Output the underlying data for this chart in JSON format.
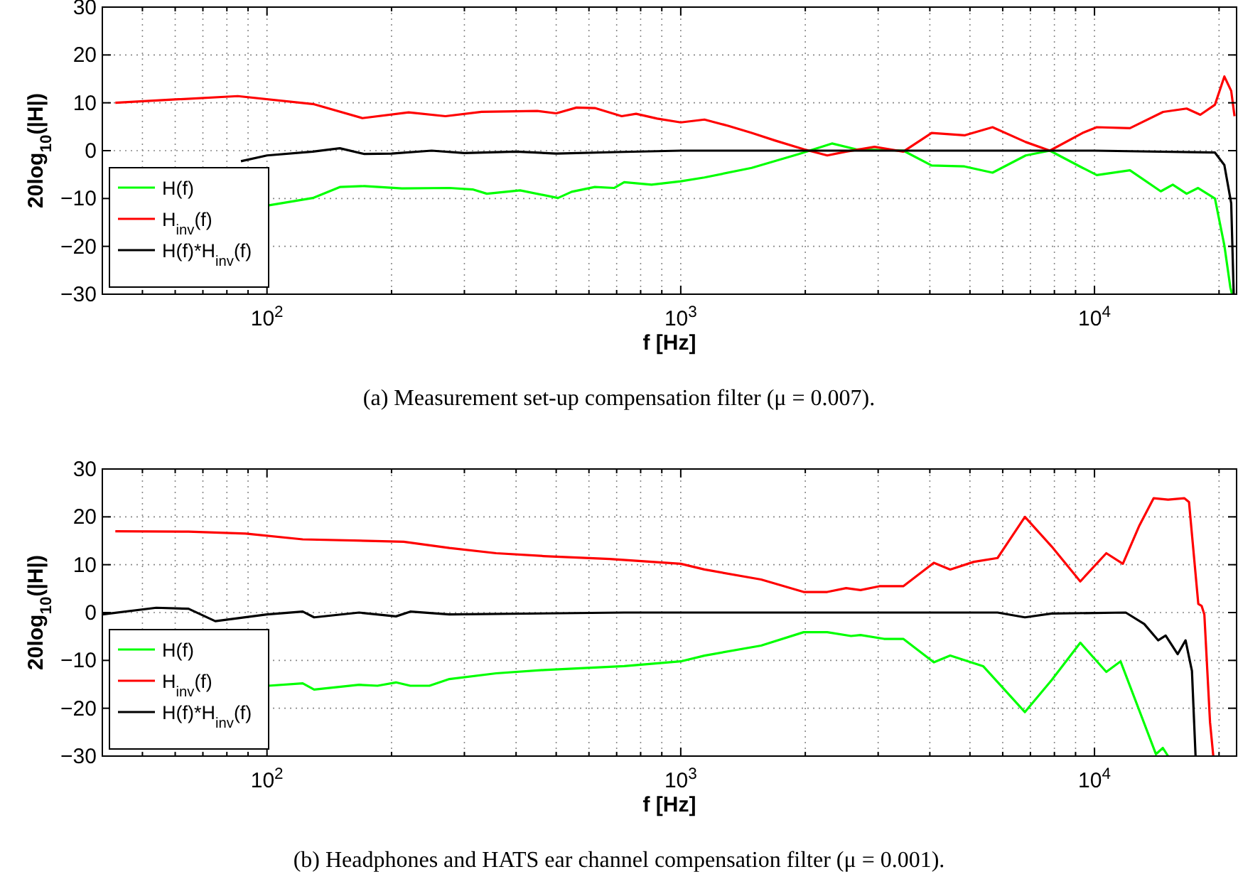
{
  "chart_data": [
    {
      "type": "line",
      "xlabel": "f [Hz]",
      "ylabel": "20log$_{10}$(|H|)",
      "log": "x",
      "grid": true,
      "legend": "bottom left",
      "xlim": [
        40,
        22050
      ],
      "ylim": [
        -30,
        30
      ],
      "yticks": [
        -30,
        -20,
        -10,
        0,
        10,
        20,
        30
      ],
      "xticks": [
        {
          "value": 40,
          "label": null
        },
        {
          "value": 50,
          "label": null
        },
        {
          "value": 60,
          "label": null
        },
        {
          "value": 70,
          "label": null
        },
        {
          "value": 80,
          "label": null
        },
        {
          "value": 90,
          "label": null
        },
        {
          "value": 100,
          "label": "10$^{2}$"
        },
        {
          "value": 200,
          "label": null
        },
        {
          "value": 300,
          "label": null
        },
        {
          "value": 400,
          "label": null
        },
        {
          "value": 500,
          "label": null
        },
        {
          "value": 600,
          "label": null
        },
        {
          "value": 700,
          "label": null
        },
        {
          "value": 800,
          "label": null
        },
        {
          "value": 900,
          "label": null
        },
        {
          "value": 1000,
          "label": "10$^{3}$"
        },
        {
          "value": 2000,
          "label": null
        },
        {
          "value": 3000,
          "label": null
        },
        {
          "value": 4000,
          "label": null
        },
        {
          "value": 5000,
          "label": null
        },
        {
          "value": 6000,
          "label": null
        },
        {
          "value": 7000,
          "label": null
        },
        {
          "value": 8000,
          "label": null
        },
        {
          "value": 9000,
          "label": null
        },
        {
          "value": 10000,
          "label": "10$^{4}$"
        },
        {
          "value": 20000,
          "label": null
        }
      ],
      "annotations": [
        "(a)  Measurement set-up compensation filter (μ = 0.007)."
      ],
      "series": [
        {
          "name": "H(f)",
          "color": "#00ff00",
          "x": [
            100,
            129,
            150,
            172,
            212,
            276,
            314,
            340,
            409,
            505,
            545,
            620,
            690,
            730,
            850,
            1000,
            1141,
            1484,
            1930,
            2320,
            2650,
            3450,
            4040,
            4850,
            5670,
            6820,
            7800,
            9360,
            10130,
            12180,
            14460,
            15460,
            16700,
            17800,
            19550,
            20600,
            21300,
            21500
          ],
          "values": [
            -11.5,
            -9.9,
            -7.6,
            -7.4,
            -7.9,
            -7.8,
            -8.1,
            -9,
            -8.3,
            -9.9,
            -8.6,
            -7.6,
            -7.8,
            -6.6,
            -7.1,
            -6.4,
            -5.6,
            -3.6,
            -0.7,
            1.5,
            0.3,
            0,
            -3.1,
            -3.3,
            -4.6,
            -1,
            0,
            -3.6,
            -5.1,
            -4.1,
            -8.5,
            -7.1,
            -9,
            -7.8,
            -10,
            -19.8,
            -28.6,
            -30
          ]
        },
        {
          "name": "H$_{inv}$(f)",
          "color": "#ff0000",
          "x": [
            43,
            60,
            85,
            130,
            170,
            220,
            270,
            330,
            450,
            500,
            560,
            620,
            720,
            780,
            877,
            1000,
            1141,
            1301,
            1484,
            1693,
            1982,
            2260,
            2510,
            2940,
            3450,
            4040,
            4850,
            5670,
            6820,
            7800,
            9360,
            10130,
            12180,
            14650,
            16700,
            18020,
            19550,
            20600,
            21400,
            21800
          ],
          "values": [
            10,
            10.7,
            11.4,
            9.7,
            6.8,
            8,
            7.2,
            8.1,
            8.3,
            7.8,
            9,
            8.9,
            7.2,
            7.7,
            6.7,
            5.9,
            6.5,
            5.2,
            3.7,
            2.1,
            0.3,
            -1,
            -0.2,
            0.8,
            -0.2,
            3.7,
            3.2,
            4.9,
            1.8,
            0,
            3.7,
            4.9,
            4.7,
            8.1,
            8.8,
            7.5,
            9.6,
            15.5,
            12.5,
            7.2
          ]
        },
        {
          "name": "H(f)*H$_{inv}$(f)",
          "color": "#000000",
          "x": [
            86.5,
            100,
            129,
            150,
            172,
            200,
            250,
            300,
            400,
            500,
            700,
            1000,
            2000,
            5000,
            10000,
            19550,
            20600,
            21400,
            21700
          ],
          "values": [
            -2.2,
            -1,
            -0.2,
            0.5,
            -0.7,
            -0.6,
            0,
            -0.5,
            -0.2,
            -0.6,
            -0.3,
            0,
            0,
            0,
            0,
            -0.4,
            -3,
            -11,
            -30
          ]
        }
      ]
    },
    {
      "type": "line",
      "xlabel": "f [Hz]",
      "ylabel": "20log$_{10}$(|H|)",
      "log": "x",
      "grid": true,
      "legend": "bottom left",
      "xlim": [
        40,
        22050
      ],
      "ylim": [
        -30,
        30
      ],
      "yticks": [
        -30,
        -20,
        -10,
        0,
        10,
        20,
        30
      ],
      "xticks": [
        {
          "value": 40,
          "label": null
        },
        {
          "value": 50,
          "label": null
        },
        {
          "value": 60,
          "label": null
        },
        {
          "value": 70,
          "label": null
        },
        {
          "value": 80,
          "label": null
        },
        {
          "value": 90,
          "label": null
        },
        {
          "value": 100,
          "label": "10$^{2}$"
        },
        {
          "value": 200,
          "label": null
        },
        {
          "value": 300,
          "label": null
        },
        {
          "value": 400,
          "label": null
        },
        {
          "value": 500,
          "label": null
        },
        {
          "value": 600,
          "label": null
        },
        {
          "value": 700,
          "label": null
        },
        {
          "value": 800,
          "label": null
        },
        {
          "value": 900,
          "label": null
        },
        {
          "value": 1000,
          "label": "10$^{3}$"
        },
        {
          "value": 2000,
          "label": null
        },
        {
          "value": 3000,
          "label": null
        },
        {
          "value": 4000,
          "label": null
        },
        {
          "value": 5000,
          "label": null
        },
        {
          "value": 6000,
          "label": null
        },
        {
          "value": 7000,
          "label": null
        },
        {
          "value": 8000,
          "label": null
        },
        {
          "value": 9000,
          "label": null
        },
        {
          "value": 10000,
          "label": "10$^{4}$"
        },
        {
          "value": 20000,
          "label": null
        }
      ],
      "annotations": [
        "(b)  Headphones and HATS ear channel compensation filter (μ = 0.001)."
      ],
      "series": [
        {
          "name": "H(f)",
          "color": "#00ff00",
          "x": [
            100.8,
            122,
            130,
            167,
            185,
            205,
            222,
            247,
            276,
            358,
            467,
            730,
            1000,
            1141,
            1564,
            1982,
            2260,
            2580,
            2720,
            3100,
            3450,
            4090,
            4480,
            5380,
            6790,
            7880,
            9240,
            10680,
            11560,
            14080,
            14630,
            15060
          ],
          "values": [
            -15.3,
            -14.8,
            -16.1,
            -15.1,
            -15.3,
            -14.6,
            -15.3,
            -15.3,
            -13.9,
            -12.7,
            -12,
            -11.2,
            -10.2,
            -9,
            -6.9,
            -4.1,
            -4.1,
            -4.9,
            -4.7,
            -5.5,
            -5.5,
            -10.4,
            -9,
            -11.2,
            -20.8,
            -14.1,
            -6.3,
            -12.4,
            -10.2,
            -29.6,
            -28.3,
            -30
          ]
        },
        {
          "name": "H$_{inv}$(f)",
          "color": "#ff0000",
          "x": [
            43,
            64.6,
            88.8,
            122,
            214,
            276,
            358,
            467,
            674,
            1000,
            1141,
            1564,
            1982,
            2260,
            2510,
            2720,
            3020,
            3450,
            4090,
            4480,
            5110,
            5830,
            6790,
            7880,
            9240,
            10680,
            11710,
            12840,
            13900,
            15060,
            16480,
            16920,
            17820,
            18150,
            18430,
            19020,
            19370
          ],
          "values": [
            17,
            16.9,
            16.5,
            15.3,
            14.8,
            13.5,
            12.4,
            11.8,
            11.2,
            10.2,
            9,
            6.9,
            4.3,
            4.3,
            5.1,
            4.7,
            5.5,
            5.5,
            10.4,
            9,
            10.6,
            11.4,
            20,
            13.8,
            6.5,
            12.4,
            10.2,
            18.2,
            23.9,
            23.6,
            23.9,
            23.1,
            1.8,
            1.4,
            -0.4,
            -22.9,
            -30
          ]
        },
        {
          "name": "H(f)*H$_{inv}$(f)",
          "color": "#000000",
          "x": [
            40,
            54,
            64.6,
            75,
            100,
            122,
            130,
            167,
            205,
            222,
            276,
            730,
            5830,
            6790,
            7880,
            11900,
            13190,
            14250,
            14860,
            15890,
            16600,
            17200,
            17550
          ],
          "values": [
            -0.4,
            1,
            0.8,
            -1.8,
            -0.4,
            0.2,
            -1,
            0,
            -0.8,
            0.2,
            -0.4,
            0,
            0,
            -1,
            -0.2,
            0,
            -2.4,
            -5.8,
            -4.8,
            -8.7,
            -5.8,
            -12.2,
            -30
          ]
        }
      ]
    }
  ]
}
